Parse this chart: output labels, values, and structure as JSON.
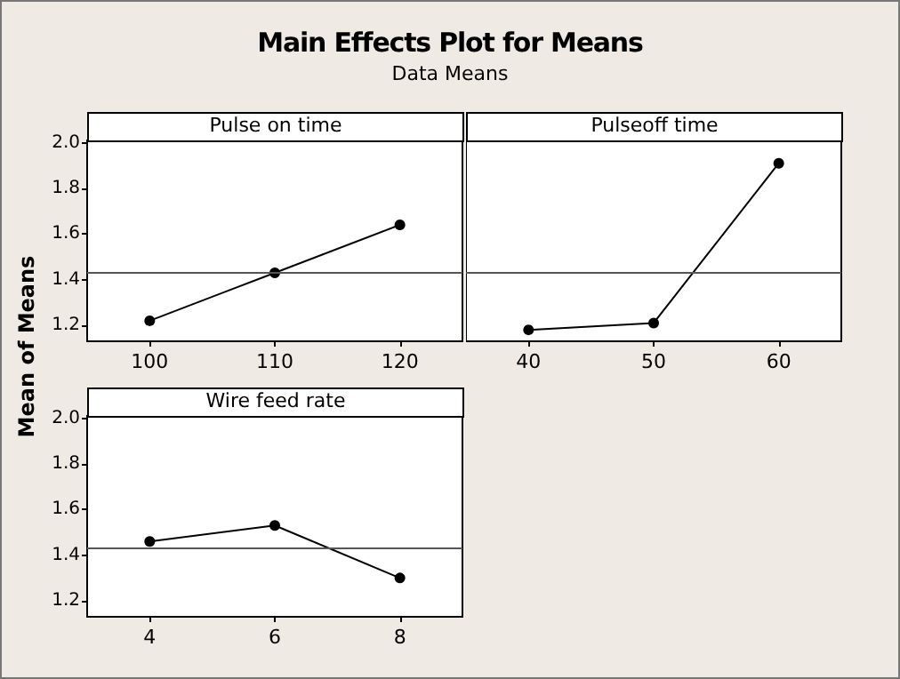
{
  "chart_data": [
    {
      "type": "other",
      "title": "Main Effects Plot for Means",
      "subtitle": "Data Means"
    },
    {
      "type": "line",
      "title": "Pulse on time",
      "ylabel": "Mean of Means",
      "categories": [
        "100",
        "110",
        "120"
      ],
      "series": [
        {
          "color": "#000000",
          "values": [
            1.22,
            1.43,
            1.64
          ]
        }
      ],
      "ylim": [
        1.13,
        2.01
      ],
      "yticks": [
        1.2,
        1.4,
        1.6,
        1.8,
        {
          "value": 2,
          "label": "2.0"
        }
      ],
      "ref_lines": [
        {
          "axis": "y",
          "value": 1.43,
          "color": "#555555"
        }
      ],
      "marker": "circle",
      "grid": false
    },
    {
      "type": "line",
      "title": "Pulseoff time",
      "categories": [
        "40",
        "50",
        "60"
      ],
      "series": [
        {
          "color": "#000000",
          "values": [
            1.18,
            1.21,
            1.91
          ]
        }
      ],
      "ylim": [
        1.13,
        2.01
      ],
      "ref_lines": [
        {
          "axis": "y",
          "value": 1.43,
          "color": "#555555"
        }
      ],
      "marker": "circle",
      "grid": false,
      "tick_labels": "x"
    },
    {
      "type": "line",
      "title": "Wire feed rate",
      "categories": [
        "4",
        "6",
        "8"
      ],
      "series": [
        {
          "color": "#000000",
          "values": [
            1.46,
            1.53,
            1.3
          ]
        }
      ],
      "ylim": [
        1.13,
        2.01
      ],
      "yticks": [
        1.2,
        1.4,
        1.6,
        1.8,
        {
          "value": 2,
          "label": "2.0"
        }
      ],
      "ref_lines": [
        {
          "axis": "y",
          "value": 1.43,
          "color": "#555555"
        }
      ],
      "marker": "circle",
      "grid": false
    }
  ]
}
